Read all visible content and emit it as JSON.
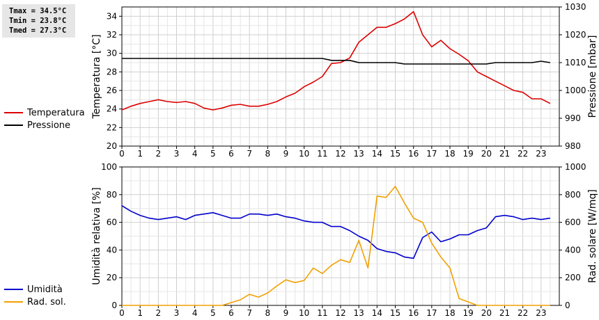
{
  "stats": {
    "tmax": "Tmax = 34.5°C",
    "tmin": "Tmin = 23.8°C",
    "tmed": "Tmed = 27.3°C"
  },
  "colors": {
    "temperature": "#dd0000",
    "pressure": "#000000",
    "humidity": "#0000cc",
    "radiation": "#f2a000"
  },
  "legend_top": [
    {
      "label": "Temperatura",
      "color": "#dd0000"
    },
    {
      "label": "Pressione",
      "color": "#000000"
    }
  ],
  "legend_bottom": [
    {
      "label": "Umidità",
      "color": "#0000cc"
    },
    {
      "label": "Rad. sol.",
      "color": "#f2a000"
    }
  ],
  "chart_data": [
    {
      "type": "line",
      "ylabel": "Temperatura [°C]",
      "y2label": "Pressione [mbar]",
      "xlim": [
        0,
        24
      ],
      "ylim": [
        20,
        35
      ],
      "y2lim": [
        980,
        1030
      ],
      "xticks": [
        0,
        1,
        2,
        3,
        4,
        5,
        6,
        7,
        8,
        9,
        10,
        11,
        12,
        13,
        14,
        15,
        16,
        17,
        18,
        19,
        20,
        21,
        22,
        23
      ],
      "yticks": [
        20,
        22,
        24,
        26,
        28,
        30,
        32,
        34
      ],
      "y2ticks": [
        980,
        990,
        1000,
        1010,
        1020,
        1030
      ],
      "grid": true,
      "legend": "left",
      "series": [
        {
          "name": "Temperatura",
          "axis": "left",
          "x": [
            0,
            0.5,
            1,
            1.5,
            2,
            2.5,
            3,
            3.5,
            4,
            4.5,
            5,
            5.5,
            6,
            6.5,
            7,
            7.5,
            8,
            8.5,
            9,
            9.5,
            10,
            10.5,
            11,
            11.5,
            12,
            12.5,
            13,
            13.5,
            14,
            14.5,
            15,
            15.5,
            16,
            16.5,
            17,
            17.5,
            18,
            18.5,
            19,
            19.5,
            20,
            20.5,
            21,
            21.5,
            22,
            22.5,
            23,
            23.5
          ],
          "y": [
            23.9,
            24.3,
            24.6,
            24.8,
            25.0,
            24.8,
            24.7,
            24.8,
            24.6,
            24.1,
            23.9,
            24.1,
            24.4,
            24.5,
            24.3,
            24.3,
            24.5,
            24.8,
            25.3,
            25.7,
            26.4,
            26.9,
            27.5,
            28.9,
            29.0,
            29.5,
            31.2,
            32.0,
            32.8,
            32.8,
            33.2,
            33.7,
            34.5,
            32.0,
            30.7,
            31.4,
            30.5,
            29.9,
            29.2,
            28.0,
            27.5,
            27.0,
            26.5,
            26.0,
            25.8,
            25.1,
            25.1,
            24.6
          ]
        },
        {
          "name": "Pressione",
          "axis": "right",
          "x": [
            0,
            1,
            2,
            3,
            4,
            5,
            6,
            7,
            8,
            9,
            10,
            11,
            11.5,
            12,
            12.5,
            13,
            14,
            15,
            15.5,
            16,
            17,
            18,
            19,
            19.5,
            20,
            20.5,
            21,
            22,
            22.5,
            23,
            23.5
          ],
          "y": [
            1011.5,
            1011.5,
            1011.5,
            1011.5,
            1011.5,
            1011.5,
            1011.5,
            1011.5,
            1011.5,
            1011.5,
            1011.5,
            1011.5,
            1010.8,
            1010.8,
            1010.8,
            1010.0,
            1010.0,
            1010.0,
            1009.5,
            1009.5,
            1009.5,
            1009.5,
            1009.5,
            1009.5,
            1009.5,
            1010.0,
            1010.0,
            1010.0,
            1010.0,
            1010.5,
            1010.0
          ]
        }
      ]
    },
    {
      "type": "line",
      "ylabel": "Umidità relativa [%]",
      "y2label": "Rad. solare [W/mq]",
      "xlim": [
        0,
        24
      ],
      "ylim": [
        0,
        100
      ],
      "y2lim": [
        0,
        1000
      ],
      "xticks": [
        0,
        1,
        2,
        3,
        4,
        5,
        6,
        7,
        8,
        9,
        10,
        11,
        12,
        13,
        14,
        15,
        16,
        17,
        18,
        19,
        20,
        21,
        22,
        23
      ],
      "yticks": [
        0,
        20,
        40,
        60,
        80,
        100
      ],
      "y2ticks": [
        0,
        200,
        400,
        600,
        800,
        1000
      ],
      "grid": true,
      "legend": "left",
      "series": [
        {
          "name": "Umidità",
          "axis": "left",
          "x": [
            0,
            0.5,
            1,
            1.5,
            2,
            2.5,
            3,
            3.5,
            4,
            4.5,
            5,
            5.5,
            6,
            6.5,
            7,
            7.5,
            8,
            8.5,
            9,
            9.5,
            10,
            10.5,
            11,
            11.5,
            12,
            12.5,
            13,
            13.5,
            14,
            14.5,
            15,
            15.5,
            16,
            16.5,
            17,
            17.5,
            18,
            18.5,
            19,
            19.5,
            20,
            20.5,
            21,
            21.5,
            22,
            22.5,
            23,
            23.5
          ],
          "y": [
            72,
            68,
            65,
            63,
            62,
            63,
            64,
            62,
            65,
            66,
            67,
            65,
            63,
            63,
            66,
            66,
            65,
            66,
            64,
            63,
            61,
            60,
            60,
            57,
            57,
            54,
            50,
            47,
            41,
            39,
            38,
            35,
            34,
            49,
            53,
            46,
            48,
            51,
            51,
            54,
            56,
            64,
            65,
            64,
            62,
            63,
            62,
            63
          ]
        },
        {
          "name": "Rad. sol.",
          "axis": "right",
          "x": [
            0,
            0.5,
            1,
            1.5,
            2,
            2.5,
            3,
            3.5,
            4,
            4.5,
            5,
            5.5,
            6,
            6.5,
            7,
            7.5,
            8,
            8.5,
            9,
            9.5,
            10,
            10.5,
            11,
            11.5,
            12,
            12.5,
            13,
            13.5,
            14,
            14.5,
            15,
            15.5,
            16,
            16.5,
            17,
            17.5,
            18,
            18.5,
            19,
            19.5,
            20,
            20.5,
            21,
            21.5,
            22,
            22.5,
            23,
            23.5
          ],
          "y": [
            0,
            0,
            0,
            0,
            0,
            0,
            0,
            0,
            0,
            0,
            0,
            0,
            20,
            40,
            80,
            60,
            90,
            140,
            185,
            165,
            180,
            270,
            230,
            290,
            330,
            310,
            470,
            270,
            790,
            780,
            860,
            740,
            630,
            600,
            450,
            350,
            270,
            50,
            25,
            0,
            0,
            0,
            0,
            0,
            0,
            0,
            0,
            0
          ]
        }
      ]
    }
  ]
}
